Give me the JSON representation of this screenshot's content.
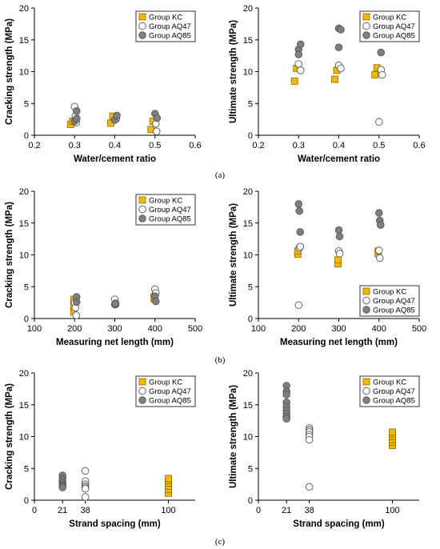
{
  "colors": {
    "KC": "#f5b800",
    "AQ47": "#ffffff",
    "AQ85": "#7f7f7f",
    "stroke": "#555555"
  },
  "captions": [
    "(a)",
    "(b)",
    "(c)"
  ],
  "chart_data": [
    {
      "type": "scatter",
      "xlabel": "Water/cement ratio",
      "ylabel": "Cracking strength (MPa)",
      "xlim": [
        0.2,
        0.6
      ],
      "ylim": [
        0,
        20
      ],
      "xticks": [
        "0.2",
        "0.3",
        "0.4",
        "0.5",
        "0.6"
      ],
      "yticks": [
        "0",
        "5",
        "10",
        "15",
        "20"
      ],
      "legend_position": "top-right",
      "series": [
        {
          "name": "Group KC",
          "marker": "square",
          "x": [
            0.29,
            0.295,
            0.39,
            0.395,
            0.49,
            0.495
          ],
          "y": [
            1.7,
            2.2,
            1.9,
            3.0,
            0.9,
            2.2
          ]
        },
        {
          "name": "Group AQ47",
          "marker": "circle",
          "x": [
            0.3,
            0.302,
            0.304,
            0.404,
            0.502,
            0.504
          ],
          "y": [
            4.5,
            3.0,
            2.0,
            2.6,
            1.8,
            0.6
          ]
        },
        {
          "name": "Group AQ85",
          "marker": "circle",
          "x": [
            0.3,
            0.305,
            0.305,
            0.4,
            0.405,
            0.5,
            0.505
          ],
          "y": [
            2.2,
            3.8,
            2.6,
            2.4,
            3.1,
            3.4,
            2.7
          ]
        }
      ]
    },
    {
      "type": "scatter",
      "xlabel": "Water/cement ratio",
      "ylabel": "Ultimate strength (MPa)",
      "xlim": [
        0.2,
        0.6
      ],
      "ylim": [
        0,
        20
      ],
      "xticks": [
        "0.2",
        "0.3",
        "0.4",
        "0.5",
        "0.6"
      ],
      "yticks": [
        "0",
        "5",
        "10",
        "15",
        "20"
      ],
      "legend_position": "top-right",
      "series": [
        {
          "name": "Group KC",
          "marker": "square",
          "x": [
            0.29,
            0.295,
            0.39,
            0.395,
            0.49,
            0.495
          ],
          "y": [
            8.5,
            10.5,
            8.8,
            10.2,
            9.5,
            10.6
          ]
        },
        {
          "name": "Group AQ47",
          "marker": "circle",
          "x": [
            0.3,
            0.305,
            0.4,
            0.405,
            0.5,
            0.505,
            0.508
          ],
          "y": [
            11.2,
            10.2,
            11.0,
            10.5,
            2.1,
            10.3,
            9.5
          ]
        },
        {
          "name": "Group AQ85",
          "marker": "circle",
          "x": [
            0.3,
            0.305,
            0.3,
            0.4,
            0.405,
            0.4,
            0.5,
            0.505,
            0.505
          ],
          "y": [
            13.5,
            14.3,
            12.7,
            16.8,
            16.6,
            13.8,
            17.9,
            15.4,
            13.0
          ]
        }
      ]
    },
    {
      "type": "scatter",
      "xlabel": "Measuring net length (mm)",
      "ylabel": "Cracking strength  (MPa)",
      "xlim": [
        100,
        500
      ],
      "ylim": [
        0,
        20
      ],
      "xticks": [
        "100",
        "200",
        "300",
        "400",
        "500"
      ],
      "yticks": [
        "0",
        "5",
        "10",
        "15",
        "20"
      ],
      "legend_position": "top-right",
      "series": [
        {
          "name": "Group KC",
          "marker": "square",
          "x": [
            198,
            198,
            198,
            398,
            398
          ],
          "y": [
            3.0,
            2.0,
            1.0,
            3.1,
            3.4
          ]
        },
        {
          "name": "Group AQ47",
          "marker": "circle",
          "x": [
            200,
            202,
            204,
            300,
            302,
            400,
            402
          ],
          "y": [
            2.5,
            1.7,
            0.5,
            3.0,
            2.2,
            4.6,
            4.0
          ]
        },
        {
          "name": "Group AQ85",
          "marker": "circle",
          "x": [
            205,
            205,
            300,
            302,
            400,
            402
          ],
          "y": [
            3.4,
            2.6,
            2.2,
            2.4,
            3.5,
            2.7
          ]
        }
      ]
    },
    {
      "type": "scatter",
      "xlabel": "Measuring net length (mm)",
      "ylabel": "Ultimate strength (MPa)",
      "xlim": [
        100,
        500
      ],
      "ylim": [
        0,
        20
      ],
      "xticks": [
        "100",
        "200",
        "300",
        "400",
        "500"
      ],
      "yticks": [
        "0",
        "5",
        "10",
        "15",
        "20"
      ],
      "legend_position": "bottom-right",
      "series": [
        {
          "name": "Group KC",
          "marker": "square",
          "x": [
            198,
            198,
            298,
            298,
            398,
            398
          ],
          "y": [
            10.1,
            10.6,
            8.6,
            9.2,
            10.2,
            10.6
          ]
        },
        {
          "name": "Group AQ47",
          "marker": "circle",
          "x": [
            200,
            202,
            204,
            300,
            302,
            400,
            402
          ],
          "y": [
            2.1,
            11.1,
            11.3,
            10.6,
            10.2,
            10.7,
            9.5
          ]
        },
        {
          "name": "Group AQ85",
          "marker": "circle",
          "x": [
            200,
            202,
            204,
            300,
            302,
            400,
            402,
            404
          ],
          "y": [
            18.0,
            16.9,
            13.6,
            13.9,
            12.9,
            16.6,
            15.4,
            14.7
          ]
        }
      ]
    },
    {
      "type": "scatter",
      "xlabel": "Strand spacing (mm)",
      "ylabel": "Cracking strength  (MPa)",
      "xlim": [
        0,
        120
      ],
      "ylim": [
        0,
        20
      ],
      "xticks": [
        "0",
        "21",
        "38",
        "100"
      ],
      "yticks": [
        "0",
        "5",
        "10",
        "15",
        "20"
      ],
      "legend_position": "top-right",
      "series": [
        {
          "name": "Group KC",
          "marker": "square",
          "x": [
            100,
            100,
            100,
            100,
            100,
            100
          ],
          "y": [
            1.1,
            1.7,
            2.2,
            2.7,
            3.1,
            3.4
          ]
        },
        {
          "name": "Group AQ47",
          "marker": "circle",
          "x": [
            38,
            38,
            38,
            38,
            38,
            38,
            38
          ],
          "y": [
            4.6,
            3.0,
            2.5,
            2.2,
            2.0,
            1.8,
            0.5
          ]
        },
        {
          "name": "Group AQ85",
          "marker": "circle",
          "x": [
            21,
            21,
            21,
            21,
            21,
            21,
            21
          ],
          "y": [
            3.9,
            3.4,
            3.1,
            2.7,
            2.4,
            2.2,
            2.0
          ]
        }
      ]
    },
    {
      "type": "scatter",
      "xlabel": "Strand spacing (mm)",
      "ylabel": "Ultimate strength (MPa)",
      "xlim": [
        0,
        120
      ],
      "ylim": [
        0,
        20
      ],
      "xticks": [
        "0",
        "21",
        "38",
        "100"
      ],
      "yticks": [
        "0",
        "5",
        "10",
        "15",
        "20"
      ],
      "legend_position": "top-right",
      "series": [
        {
          "name": "Group KC",
          "marker": "square",
          "x": [
            100,
            100,
            100,
            100,
            100,
            100
          ],
          "y": [
            8.6,
            9.1,
            9.5,
            10.0,
            10.4,
            10.7
          ]
        },
        {
          "name": "Group AQ47",
          "marker": "circle",
          "x": [
            38,
            38,
            38,
            38,
            38,
            38,
            38
          ],
          "y": [
            11.3,
            11.0,
            10.7,
            10.3,
            10.0,
            9.5,
            2.1
          ]
        },
        {
          "name": "Group AQ85",
          "marker": "circle",
          "x": [
            21,
            21,
            21,
            21,
            21,
            21,
            21,
            21,
            21
          ],
          "y": [
            18.0,
            17.1,
            16.6,
            15.4,
            14.7,
            14.1,
            13.6,
            13.1,
            12.8
          ]
        }
      ]
    }
  ]
}
